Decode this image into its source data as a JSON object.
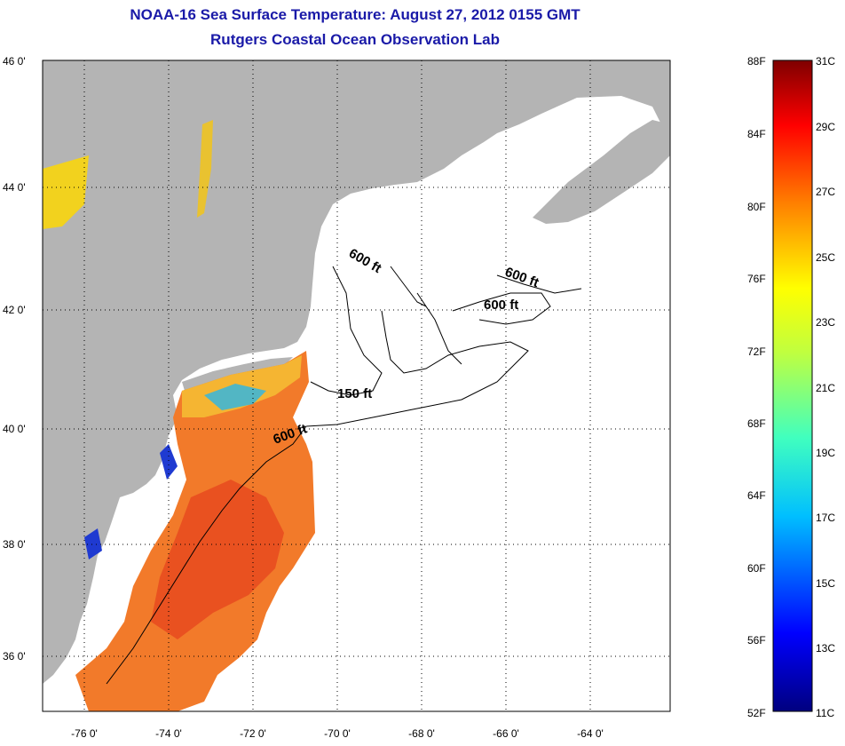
{
  "title": {
    "line1": "NOAA-16 Sea Surface Temperature:  August 27, 2012 0155 GMT",
    "line2": "Rutgers Coastal Ocean Observation Lab"
  },
  "map": {
    "lat_labels": [
      "46 0'",
      "44 0'",
      "42 0'",
      "40 0'",
      "38 0'",
      "36 0'"
    ],
    "lon_labels": [
      "-76 0'",
      "-74 0'",
      "-72 0'",
      "-70 0'",
      "-68 0'",
      "-66 0'",
      "-64 0'"
    ],
    "contour_labels": [
      "600 ft",
      "600 ft",
      "600 ft",
      "150 ft",
      "600 ft"
    ],
    "colors": {
      "land": "#b4b4b4",
      "ocean": "#ffffff",
      "title": "#1a1aa8"
    }
  },
  "colorbar": {
    "f_labels": [
      "88F",
      "84F",
      "80F",
      "76F",
      "72F",
      "68F",
      "64F",
      "60F",
      "56F",
      "52F"
    ],
    "c_labels": [
      "31C",
      "29C",
      "27C",
      "25C",
      "23C",
      "21C",
      "19C",
      "17C",
      "15C",
      "13C",
      "11C"
    ]
  }
}
